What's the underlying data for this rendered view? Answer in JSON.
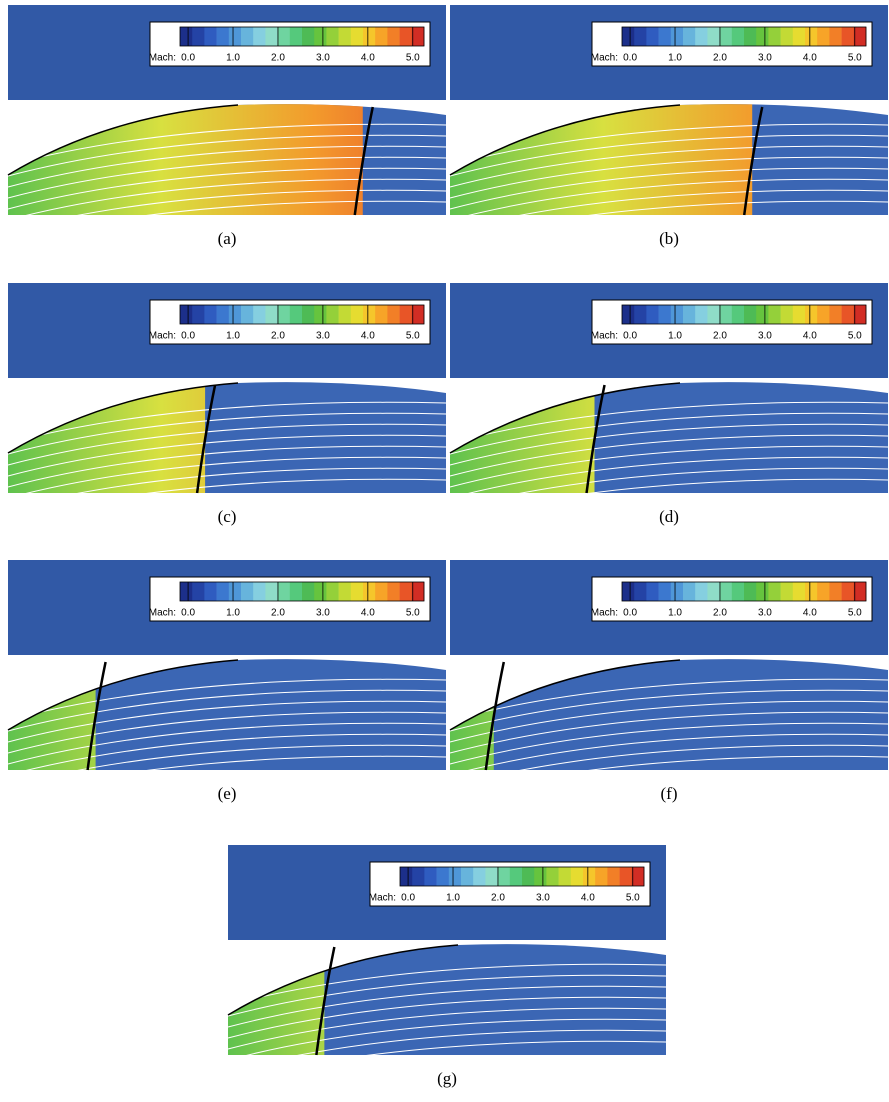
{
  "colorbar": {
    "label": "Mach:",
    "lim": [
      -0.18,
      5.25
    ],
    "ticks": [
      {
        "value": 0,
        "label": "0.0"
      },
      {
        "value": 1,
        "label": "1.0"
      },
      {
        "value": 2,
        "label": "2.0"
      },
      {
        "value": 3,
        "label": "3.0"
      },
      {
        "value": 4,
        "label": "4.0"
      },
      {
        "value": 5,
        "label": "5.0"
      }
    ]
  },
  "panels": [
    {
      "label": "(a)"
    },
    {
      "label": "(b)"
    },
    {
      "label": "(c)"
    },
    {
      "label": "(d)"
    },
    {
      "label": "(e)"
    },
    {
      "label": "(f)"
    },
    {
      "label": "(g)"
    }
  ]
}
